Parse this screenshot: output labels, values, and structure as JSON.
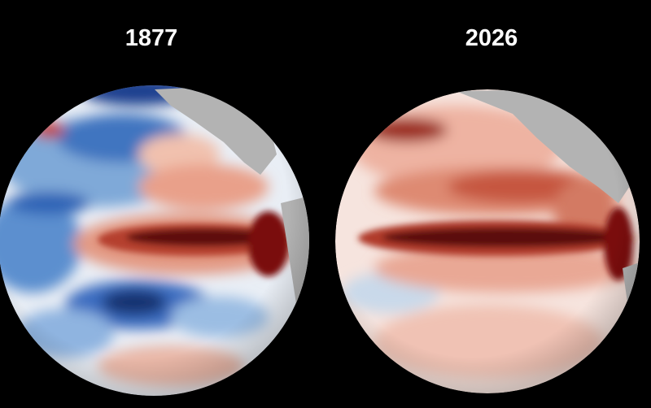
{
  "panels": [
    {
      "label": "1877"
    },
    {
      "label": "2026"
    }
  ]
}
